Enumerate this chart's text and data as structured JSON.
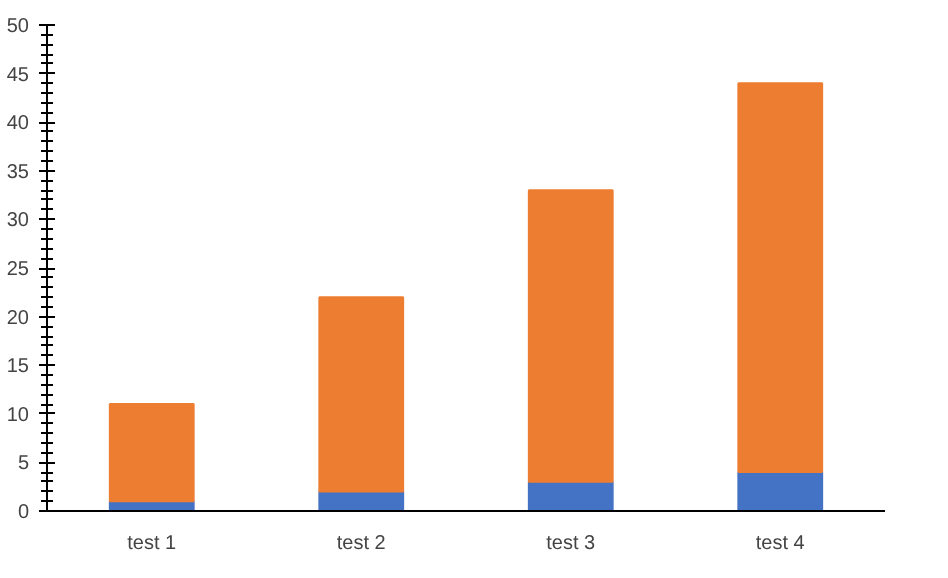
{
  "chart_data": {
    "type": "bar",
    "stacked": true,
    "categories": [
      "test 1",
      "test 2",
      "test 3",
      "test 4"
    ],
    "series": [
      {
        "color": "#4472c4",
        "values": [
          1,
          2,
          3,
          4
        ]
      },
      {
        "color": "#ed7d31",
        "values": [
          10,
          20,
          30,
          40
        ]
      }
    ],
    "ylim": [
      0,
      50
    ],
    "yticks": [
      0,
      5,
      10,
      15,
      20,
      25,
      30,
      35,
      40,
      45,
      50
    ],
    "grid": false
  }
}
